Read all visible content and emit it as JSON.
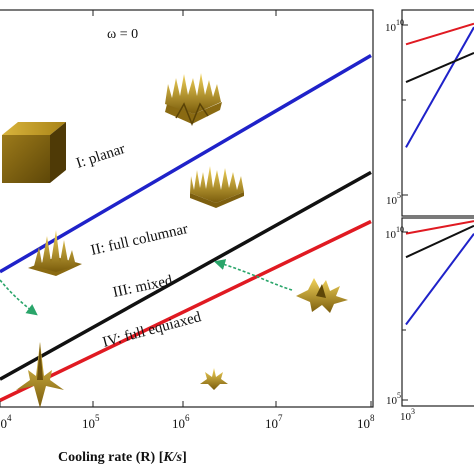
{
  "chart_data": [
    {
      "type": "line",
      "annotation": "ω = 0",
      "xlabel": "Cooling rate (R) [K/s]",
      "xlabel_parts": {
        "main": "Cooling rate (R) [",
        "unit": "K/s",
        "close": "]"
      },
      "x_scale": "log",
      "xlim": [
        1000,
        100000000
      ],
      "xticks": [
        {
          "label": "10",
          "exp": "4",
          "value": 10000
        },
        {
          "label": "10",
          "exp": "5",
          "value": 100000
        },
        {
          "label": "10",
          "exp": "6",
          "value": 1000000
        },
        {
          "label": "10",
          "exp": "7",
          "value": 10000000
        },
        {
          "label": "10",
          "exp": "8",
          "value": 100000000
        }
      ],
      "y_scale": "log",
      "ylim": [
        1,
        100
      ],
      "series": [
        {
          "color": "#1f22c9",
          "x": [
            1000,
            100000000
          ],
          "y": [
            4.8,
            59
          ]
        },
        {
          "color": "#111111",
          "x": [
            1000,
            100000000
          ],
          "y": [
            1.38,
            15.2
          ]
        },
        {
          "color": "#e01a22",
          "x": [
            1000,
            100000000
          ],
          "y": [
            1.08,
            8.6
          ]
        }
      ],
      "regions": [
        {
          "label": "I: planar"
        },
        {
          "label": "II: full columnar"
        },
        {
          "label": "III: mixed"
        },
        {
          "label": "IV: full equiaxed"
        }
      ],
      "colors": {
        "blue": "#1f22c9",
        "black": "#111111",
        "red": "#e01a22",
        "arrow": "#2aa56a",
        "gold": "#b8921e"
      }
    },
    {
      "type": "line",
      "y_scale": "log",
      "yticks": [
        {
          "label": "10",
          "exp": "10"
        },
        {
          "label": "10",
          "exp": "5"
        }
      ],
      "series": [
        {
          "color": "#1f22c9",
          "y": [
            40,
            110
          ]
        },
        {
          "color": "#111111",
          "y": [
            78,
            95
          ]
        },
        {
          "color": "#e01a22",
          "y": [
            100,
            112
          ]
        }
      ]
    },
    {
      "type": "line",
      "y_scale": "log",
      "yticks": [
        {
          "label": "10",
          "exp": "10"
        },
        {
          "label": "10",
          "exp": "5"
        }
      ],
      "xticks": [
        {
          "label": "10",
          "exp": "3"
        }
      ],
      "series": [
        {
          "color": "#1f22c9",
          "y": [
            52,
            110
          ]
        },
        {
          "color": "#111111",
          "y": [
            95,
            115
          ]
        },
        {
          "color": "#e01a22",
          "y": [
            110,
            118
          ]
        }
      ]
    }
  ]
}
